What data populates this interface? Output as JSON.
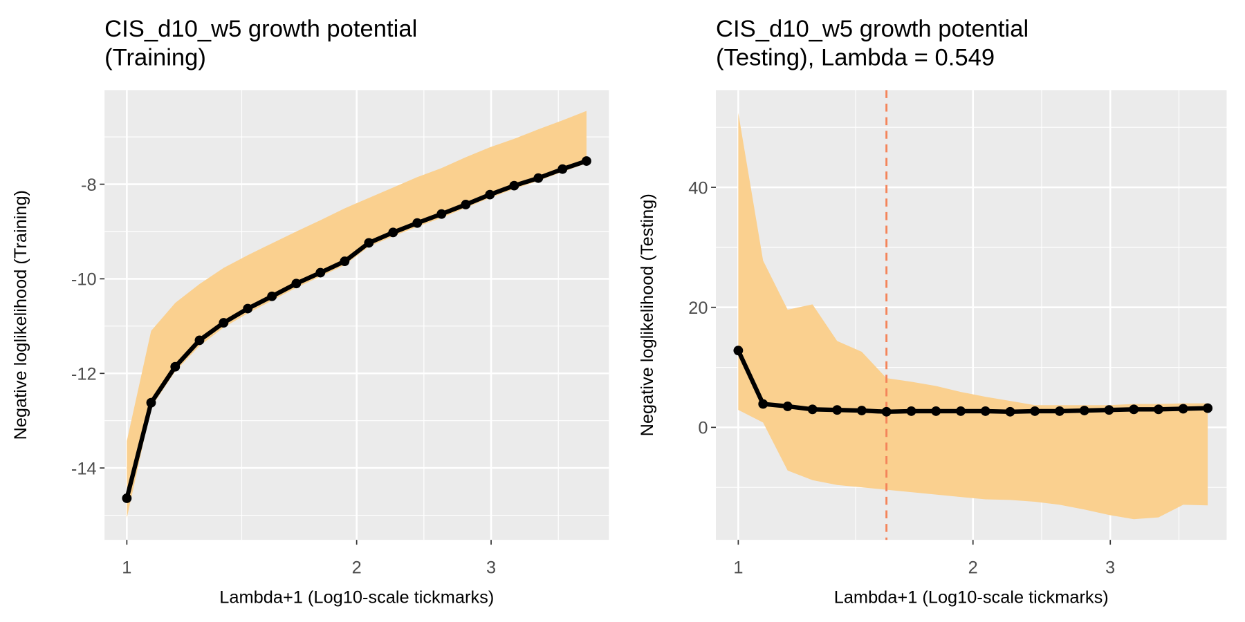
{
  "chart_data": [
    {
      "type": "line",
      "title": [
        "CIS_d10_w5 growth potential",
        "(Training)"
      ],
      "x_label": "Lambda+1 (Log10-scale tickmarks)",
      "y_label": "Negative loglikelihood (Training)",
      "log_x": true,
      "grid": true,
      "x": [
        1,
        1.076,
        1.157,
        1.245,
        1.339,
        1.44,
        1.549,
        1.667,
        1.793,
        1.929,
        2.075,
        2.232,
        2.401,
        2.583,
        2.779,
        2.989,
        3.216,
        3.459,
        3.721,
        4.0
      ],
      "values": [
        -14.64,
        -12.62,
        -11.86,
        -11.3,
        -10.93,
        -10.63,
        -10.37,
        -10.1,
        -9.87,
        -9.63,
        -9.24,
        -9.02,
        -8.82,
        -8.63,
        -8.43,
        -8.22,
        -8.03,
        -7.87,
        -7.68,
        -7.51
      ],
      "ribbon_upper": [
        -13.43,
        -11.1,
        -10.51,
        -10.11,
        -9.77,
        -9.5,
        -9.25,
        -9.0,
        -8.76,
        -8.51,
        -8.29,
        -8.07,
        -7.85,
        -7.66,
        -7.43,
        -7.22,
        -7.04,
        -6.84,
        -6.65,
        -6.45
      ],
      "ribbon_lower": [
        -15.06,
        -12.72,
        -11.96,
        -11.42,
        -11.03,
        -10.73,
        -10.46,
        -10.19,
        -9.95,
        -9.71,
        -9.32,
        -9.1,
        -8.9,
        -8.71,
        -8.5,
        -8.29,
        -8.1,
        -7.93,
        -7.74,
        -7.56
      ],
      "color": "#000000",
      "ribbon_color": "#fad08f",
      "xlim": [
        0.935,
        4.28
      ],
      "xticks": [
        1,
        2,
        3
      ],
      "ylim": [
        -15.52,
        -6.01
      ],
      "yticks": [
        -14,
        -12,
        -10,
        -8
      ]
    },
    {
      "type": "line",
      "title": [
        "CIS_d10_w5 growth potential",
        "(Testing), Lambda = 0.549"
      ],
      "x_label": "Lambda+1 (Log10-scale tickmarks)",
      "y_label": "Negative loglikelihood (Testing)",
      "log_x": true,
      "grid": true,
      "x": [
        1,
        1.076,
        1.157,
        1.245,
        1.339,
        1.44,
        1.549,
        1.667,
        1.793,
        1.929,
        2.075,
        2.232,
        2.401,
        2.583,
        2.779,
        2.989,
        3.216,
        3.459,
        3.721,
        4.0
      ],
      "values": [
        12.8,
        3.9,
        3.5,
        3.0,
        2.9,
        2.8,
        2.6,
        2.7,
        2.7,
        2.7,
        2.7,
        2.6,
        2.7,
        2.7,
        2.8,
        2.9,
        3.0,
        3.0,
        3.1,
        3.2
      ],
      "ribbon_upper": [
        52.4,
        27.8,
        19.6,
        20.5,
        14.4,
        12.6,
        8.2,
        7.6,
        6.9,
        5.9,
        5.1,
        4.4,
        3.7,
        3.7,
        3.7,
        3.7,
        3.9,
        3.9,
        4.0,
        4.0
      ],
      "ribbon_lower": [
        2.9,
        0.8,
        -7.2,
        -8.8,
        -9.6,
        -10.0,
        -10.4,
        -10.8,
        -11.2,
        -11.6,
        -12.0,
        -12.1,
        -12.4,
        -12.9,
        -13.7,
        -14.6,
        -15.3,
        -15.0,
        -12.9,
        -13.0
      ],
      "color": "#000000",
      "ribbon_color": "#fad08f",
      "vline": 1.549,
      "vline_color": "#f4845a",
      "xlim": [
        0.936,
        4.23
      ],
      "xticks": [
        1,
        2,
        3
      ],
      "ylim": [
        -18.75,
        56.2
      ],
      "yticks": [
        0,
        20,
        40
      ]
    }
  ]
}
